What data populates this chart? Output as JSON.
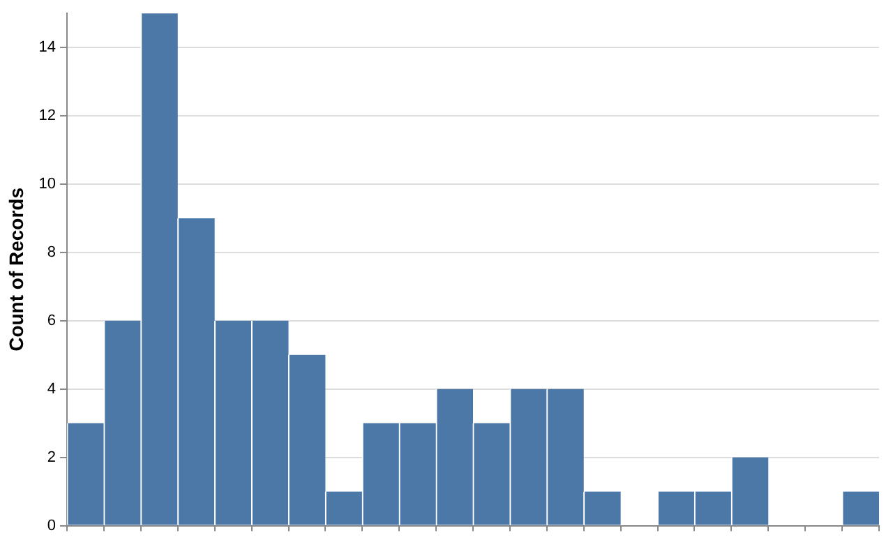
{
  "chart_data": {
    "type": "bar",
    "ylabel": "Count of Records",
    "categories": [
      null,
      null,
      null,
      null,
      null,
      null,
      null,
      null,
      null,
      null,
      null,
      null,
      null,
      null,
      null,
      null,
      null,
      null,
      null,
      null,
      null,
      null
    ],
    "values": [
      3,
      6,
      15,
      9,
      6,
      6,
      5,
      1,
      3,
      3,
      4,
      3,
      4,
      4,
      1,
      0,
      1,
      1,
      2,
      0,
      0,
      1
    ],
    "color": "#4c78a8",
    "ylim": [
      0,
      15
    ],
    "yticks": [
      0,
      2,
      4,
      6,
      8,
      10,
      12,
      14
    ],
    "grid": "y",
    "legend": false
  }
}
